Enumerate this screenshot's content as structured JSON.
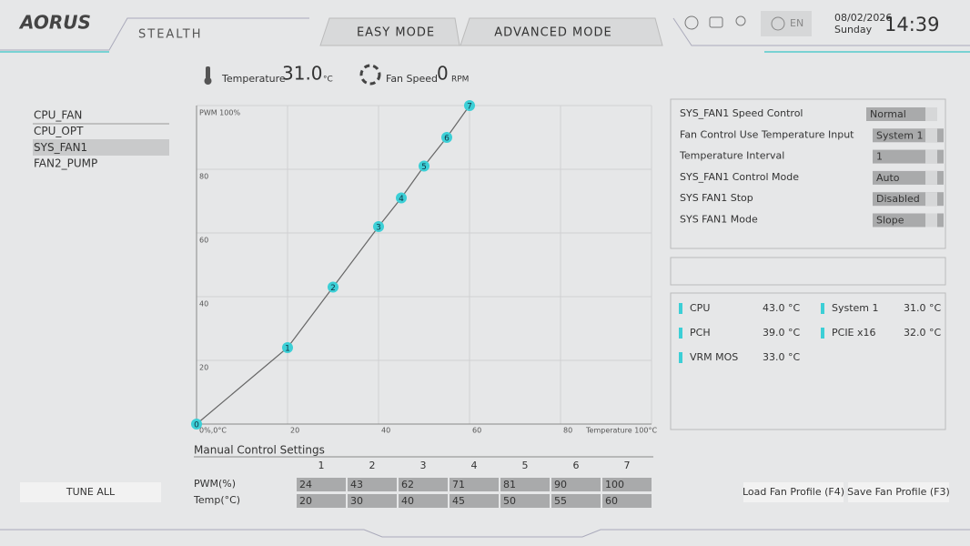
{
  "header": {
    "brand": "AORUS",
    "edition": "STEALTH",
    "tabs": [
      "EASY MODE",
      "ADVANCED MODE"
    ],
    "language": "EN",
    "date": "08/02/2026",
    "day": "Sunday",
    "time": "14:39"
  },
  "status": {
    "temperature_label": "Temperature",
    "temperature": "31.0",
    "temperature_unit": "°C",
    "fan_label": "Fan Speed",
    "fan_speed": "0",
    "fan_unit": "RPM"
  },
  "fans": {
    "items": [
      "CPU_FAN",
      "CPU_OPT",
      "SYS_FAN1",
      "FAN2_PUMP"
    ],
    "selected_index": 2
  },
  "chart_data": {
    "type": "line",
    "x": [
      0,
      20,
      30,
      40,
      45,
      50,
      55,
      60
    ],
    "values": [
      0,
      24,
      43,
      62,
      71,
      81,
      90,
      100
    ],
    "point_labels": [
      "0",
      "1",
      "2",
      "3",
      "4",
      "5",
      "6",
      "7"
    ],
    "color": "#3ccfd6",
    "xlim": [
      0,
      100
    ],
    "ylim": [
      0,
      100
    ],
    "xticks": [
      {
        "value": 0,
        "label": "0%,0°C"
      },
      20,
      40,
      60,
      80,
      {
        "value": 100,
        "label": "Temperature 100°C"
      }
    ],
    "yticks": [
      20,
      40,
      60,
      80,
      {
        "value": 100,
        "label": "PWM 100%"
      }
    ],
    "grid": true
  },
  "manual": {
    "title": "Manual Control Settings",
    "row_labels": [
      "PWM(%)",
      "Temp(°C)"
    ]
  },
  "settings": [
    {
      "label": "SYS_FAN1 Speed Control",
      "value": "Normal"
    },
    {
      "label": "Fan Control Use Temperature Input",
      "value": "System 1"
    },
    {
      "label": "Temperature Interval",
      "value": "1"
    },
    {
      "label": "SYS_FAN1 Control Mode",
      "value": "Auto"
    },
    {
      "label": "SYS FAN1 Stop",
      "value": "Disabled"
    },
    {
      "label": "SYS FAN1 Mode",
      "value": "Slope"
    }
  ],
  "sensors": [
    {
      "name": "CPU",
      "value": "43.0 °C"
    },
    {
      "name": "System 1",
      "value": "31.0 °C"
    },
    {
      "name": "PCH",
      "value": "39.0 °C"
    },
    {
      "name": "PCIE x16",
      "value": "32.0 °C"
    },
    {
      "name": "VRM MOS",
      "value": "33.0 °C"
    }
  ],
  "buttons": {
    "tune_all": "TUNE ALL",
    "load": "Load Fan Profile (F4)",
    "save": "Save Fan Profile (F3)"
  }
}
